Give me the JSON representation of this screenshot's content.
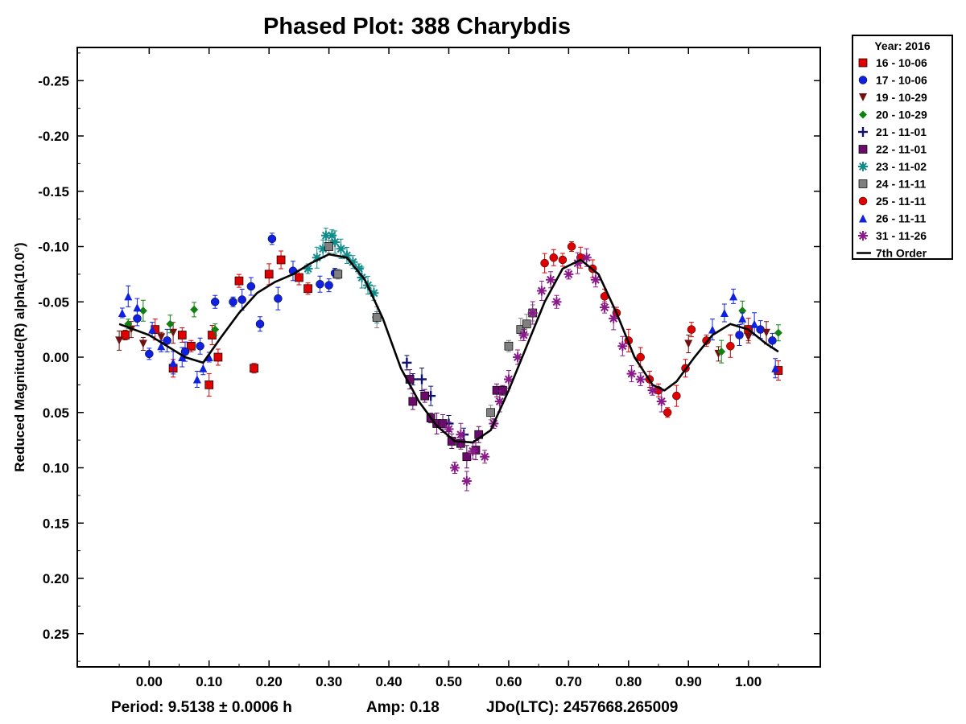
{
  "chart_data": {
    "type": "scatter",
    "title": "Phased Plot: 388 Charybdis",
    "ylabel": "Reduced Magnitude(R) alpha(10.0°)",
    "xlabel": "",
    "xlim": [
      -0.12,
      1.12
    ],
    "ylim": [
      -0.28,
      0.28
    ],
    "y_inverted": true,
    "grid": false,
    "legend_position": "outside-right",
    "x_ticks": [
      0.0,
      0.1,
      0.2,
      0.3,
      0.4,
      0.5,
      0.6,
      0.7,
      0.8,
      0.9,
      1.0
    ],
    "x_tick_labels": [
      "0.00",
      "0.10",
      "0.20",
      "0.30",
      "0.40",
      "0.50",
      "0.60",
      "0.70",
      "0.80",
      "0.90",
      "1.00"
    ],
    "y_ticks": [
      -0.25,
      -0.2,
      -0.15,
      -0.1,
      -0.05,
      0.0,
      0.05,
      0.1,
      0.15,
      0.2,
      0.25
    ],
    "y_tick_labels": [
      "-0.25",
      "-0.20",
      "-0.15",
      "-0.10",
      "-0.05",
      "0.00",
      "0.05",
      "0.10",
      "0.15",
      "0.20",
      "0.25"
    ],
    "legend_title": "Year: 2016",
    "fit_curve": {
      "name": "7th Order",
      "color": "#000000",
      "x": [
        -0.05,
        0.0,
        0.03,
        0.06,
        0.09,
        0.12,
        0.15,
        0.18,
        0.21,
        0.24,
        0.27,
        0.3,
        0.33,
        0.36,
        0.39,
        0.42,
        0.45,
        0.48,
        0.51,
        0.54,
        0.57,
        0.6,
        0.63,
        0.66,
        0.69,
        0.72,
        0.75,
        0.78,
        0.81,
        0.84,
        0.86,
        0.88,
        0.91,
        0.94,
        0.97,
        1.0,
        1.03,
        1.05
      ],
      "y": [
        -0.03,
        -0.02,
        -0.01,
        0.0,
        0.005,
        -0.018,
        -0.04,
        -0.058,
        -0.068,
        -0.075,
        -0.085,
        -0.093,
        -0.09,
        -0.07,
        -0.035,
        0.01,
        0.04,
        0.062,
        0.076,
        0.077,
        0.066,
        0.03,
        -0.01,
        -0.05,
        -0.08,
        -0.088,
        -0.075,
        -0.04,
        0.0,
        0.025,
        0.03,
        0.022,
        0.0,
        -0.02,
        -0.03,
        -0.025,
        -0.012,
        -0.005
      ]
    },
    "series": [
      {
        "name": "16 - 10-06",
        "marker": "square",
        "color": "#e00000",
        "points": [
          [
            -0.04,
            -0.02
          ],
          [
            0.01,
            -0.025
          ],
          [
            0.04,
            0.01
          ],
          [
            0.055,
            -0.02
          ],
          [
            0.07,
            -0.01
          ],
          [
            0.1,
            0.025
          ],
          [
            0.105,
            -0.02
          ],
          [
            0.115,
            0.0
          ],
          [
            0.15,
            -0.069
          ],
          [
            0.175,
            0.01
          ],
          [
            0.2,
            -0.075
          ],
          [
            0.22,
            -0.088
          ],
          [
            0.25,
            -0.072
          ],
          [
            0.265,
            -0.062
          ],
          [
            1.0,
            -0.025
          ],
          [
            1.05,
            0.012
          ]
        ]
      },
      {
        "name": "17 - 10-06",
        "marker": "circle",
        "color": "#1020e0",
        "points": [
          [
            -0.02,
            -0.035
          ],
          [
            0.0,
            -0.003
          ],
          [
            0.03,
            -0.015
          ],
          [
            0.06,
            -0.005
          ],
          [
            0.085,
            -0.01
          ],
          [
            0.11,
            -0.05
          ],
          [
            0.14,
            -0.05
          ],
          [
            0.155,
            -0.052
          ],
          [
            0.17,
            -0.064
          ],
          [
            0.185,
            -0.03
          ],
          [
            0.205,
            -0.107
          ],
          [
            0.215,
            -0.053
          ],
          [
            0.24,
            -0.078
          ],
          [
            0.285,
            -0.066
          ],
          [
            0.3,
            -0.065
          ],
          [
            0.31,
            -0.076
          ],
          [
            0.985,
            -0.02
          ],
          [
            1.02,
            -0.025
          ],
          [
            1.04,
            -0.015
          ]
        ]
      },
      {
        "name": "19 - 10-29",
        "marker": "tri-down",
        "color": "#701010",
        "points": [
          [
            -0.05,
            -0.015
          ],
          [
            -0.03,
            -0.025
          ],
          [
            -0.01,
            -0.012
          ],
          [
            0.02,
            -0.018
          ],
          [
            0.04,
            -0.022
          ],
          [
            0.9,
            -0.012
          ],
          [
            0.95,
            -0.003
          ],
          [
            1.0,
            -0.018
          ],
          [
            1.03,
            -0.022
          ]
        ]
      },
      {
        "name": "20 - 10-29",
        "marker": "diamond",
        "color": "#108010",
        "points": [
          [
            -0.035,
            -0.03
          ],
          [
            -0.01,
            -0.042
          ],
          [
            0.035,
            -0.03
          ],
          [
            0.075,
            -0.043
          ],
          [
            0.11,
            -0.025
          ],
          [
            0.955,
            -0.005
          ],
          [
            0.99,
            -0.042
          ],
          [
            1.05,
            -0.022
          ]
        ]
      },
      {
        "name": "21 - 11-01",
        "marker": "plus",
        "color": "#101070",
        "points": [
          [
            0.43,
            0.005
          ],
          [
            0.44,
            0.02
          ],
          [
            0.455,
            0.02
          ],
          [
            0.47,
            0.035
          ],
          [
            0.5,
            0.06
          ],
          [
            0.525,
            0.07
          ]
        ]
      },
      {
        "name": "22 - 11-01",
        "marker": "square",
        "color": "#6a0a6a",
        "points": [
          [
            0.435,
            0.02
          ],
          [
            0.44,
            0.04
          ],
          [
            0.46,
            0.035
          ],
          [
            0.47,
            0.055
          ],
          [
            0.48,
            0.06
          ],
          [
            0.49,
            0.06
          ],
          [
            0.505,
            0.076
          ],
          [
            0.52,
            0.078
          ],
          [
            0.53,
            0.09
          ],
          [
            0.545,
            0.084
          ],
          [
            0.55,
            0.07
          ],
          [
            0.58,
            0.03
          ],
          [
            0.59,
            0.03
          ]
        ]
      },
      {
        "name": "23 - 11-02",
        "marker": "asterisk",
        "color": "#108a8a",
        "points": [
          [
            0.265,
            -0.08
          ],
          [
            0.28,
            -0.09
          ],
          [
            0.29,
            -0.098
          ],
          [
            0.295,
            -0.11
          ],
          [
            0.305,
            -0.11
          ],
          [
            0.31,
            -0.104
          ],
          [
            0.32,
            -0.098
          ],
          [
            0.33,
            -0.092
          ],
          [
            0.34,
            -0.086
          ],
          [
            0.35,
            -0.08
          ],
          [
            0.355,
            -0.072
          ],
          [
            0.365,
            -0.065
          ],
          [
            0.375,
            -0.058
          ],
          [
            0.38,
            -0.036
          ]
        ]
      },
      {
        "name": "24 - 11-11",
        "marker": "square",
        "color": "#808080",
        "points": [
          [
            0.57,
            0.05
          ],
          [
            0.6,
            -0.01
          ],
          [
            0.62,
            -0.025
          ],
          [
            0.63,
            -0.03
          ],
          [
            0.64,
            -0.04
          ],
          [
            0.3,
            -0.1
          ],
          [
            0.315,
            -0.075
          ],
          [
            0.38,
            -0.036
          ]
        ]
      },
      {
        "name": "25 - 11-11",
        "marker": "circle",
        "color": "#e00000",
        "points": [
          [
            0.66,
            -0.085
          ],
          [
            0.675,
            -0.09
          ],
          [
            0.69,
            -0.088
          ],
          [
            0.705,
            -0.1
          ],
          [
            0.72,
            -0.09
          ],
          [
            0.74,
            -0.08
          ],
          [
            0.76,
            -0.055
          ],
          [
            0.78,
            -0.04
          ],
          [
            0.8,
            -0.015
          ],
          [
            0.82,
            0.0
          ],
          [
            0.835,
            0.02
          ],
          [
            0.85,
            0.03
          ],
          [
            0.865,
            0.05
          ],
          [
            0.88,
            0.035
          ],
          [
            0.895,
            0.01
          ],
          [
            0.905,
            -0.025
          ],
          [
            0.93,
            -0.015
          ],
          [
            0.97,
            -0.01
          ]
        ]
      },
      {
        "name": "26 - 11-11",
        "marker": "tri-up",
        "color": "#1020e0",
        "points": [
          [
            -0.045,
            -0.04
          ],
          [
            -0.035,
            -0.055
          ],
          [
            -0.02,
            -0.045
          ],
          [
            0.005,
            -0.025
          ],
          [
            0.02,
            -0.01
          ],
          [
            0.04,
            0.005
          ],
          [
            0.055,
            0.0
          ],
          [
            0.08,
            0.02
          ],
          [
            0.09,
            0.01
          ],
          [
            0.1,
            0.0
          ],
          [
            0.94,
            -0.025
          ],
          [
            0.96,
            -0.04
          ],
          [
            0.975,
            -0.055
          ],
          [
            0.99,
            -0.035
          ],
          [
            1.01,
            -0.03
          ],
          [
            1.045,
            0.01
          ]
        ]
      },
      {
        "name": "31 - 11-26",
        "marker": "asterisk",
        "color": "#8a1a8a",
        "points": [
          [
            0.5,
            0.065
          ],
          [
            0.51,
            0.1
          ],
          [
            0.52,
            0.07
          ],
          [
            0.53,
            0.112
          ],
          [
            0.54,
            0.085
          ],
          [
            0.56,
            0.09
          ],
          [
            0.575,
            0.06
          ],
          [
            0.585,
            0.04
          ],
          [
            0.6,
            0.02
          ],
          [
            0.615,
            0.0
          ],
          [
            0.625,
            -0.02
          ],
          [
            0.64,
            -0.04
          ],
          [
            0.655,
            -0.06
          ],
          [
            0.67,
            -0.07
          ],
          [
            0.68,
            -0.05
          ],
          [
            0.7,
            -0.075
          ],
          [
            0.715,
            -0.085
          ],
          [
            0.73,
            -0.09
          ],
          [
            0.745,
            -0.07
          ],
          [
            0.76,
            -0.045
          ],
          [
            0.775,
            -0.035
          ],
          [
            0.79,
            -0.01
          ],
          [
            0.805,
            0.015
          ],
          [
            0.82,
            0.02
          ],
          [
            0.84,
            0.03
          ],
          [
            0.855,
            0.04
          ]
        ]
      }
    ]
  },
  "footer": {
    "period": "Period: 9.5138 ± 0.0006 h",
    "amp": "Amp: 0.18",
    "jdo": "JDo(LTC): 2457668.265009"
  }
}
